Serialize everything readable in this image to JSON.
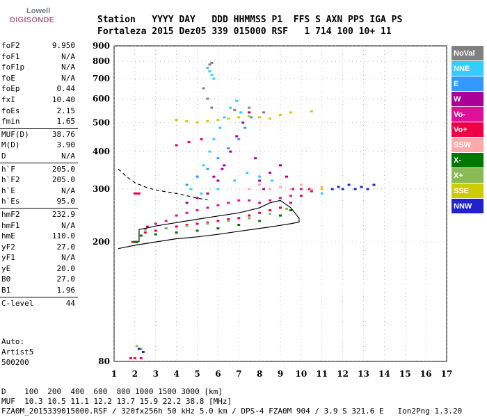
{
  "logo": {
    "line1": "Lowell",
    "line2": "DIGISONDE"
  },
  "header": {
    "line1": "Station   YYYY DAY   DDD HHMMSS P1  FFS S AXN PPS IGA PS",
    "line2": "Fortaleza 2015 Dez05 339 015000 RSF   1 714 100 10+ 11"
  },
  "params": [
    {
      "label": "foF2",
      "value": "9.950"
    },
    {
      "label": "foF1",
      "value": "N/A"
    },
    {
      "label": "foF1p",
      "value": "N/A"
    },
    {
      "label": "foE",
      "value": "N/A"
    },
    {
      "label": "foEp",
      "value": "0.44"
    },
    {
      "label": "fxI",
      "value": "10.40"
    },
    {
      "label": "foEs",
      "value": "2.15"
    },
    {
      "label": "fmin",
      "value": "1.65"
    },
    {
      "sep": true
    },
    {
      "label": "MUF(D)",
      "value": "38.76"
    },
    {
      "label": "M(D)",
      "value": "3.90"
    },
    {
      "label": "D",
      "value": "N/A"
    },
    {
      "sep": true
    },
    {
      "label": "h`F",
      "value": "205.0"
    },
    {
      "label": "h`F2",
      "value": "205.0"
    },
    {
      "label": "h`E",
      "value": "N/A"
    },
    {
      "label": "h`Es",
      "value": "95.0"
    },
    {
      "sep": true
    },
    {
      "label": "hmF2",
      "value": "232.9"
    },
    {
      "label": "hmF1",
      "value": "N/A"
    },
    {
      "label": "hmE",
      "value": "110.0"
    },
    {
      "label": "yF2",
      "value": "27.0"
    },
    {
      "label": "yF1",
      "value": "N/A"
    },
    {
      "label": "yE",
      "value": "20.0"
    },
    {
      "label": "B0",
      "value": "27.0"
    },
    {
      "label": "B1",
      "value": "1.96"
    },
    {
      "sep": true
    },
    {
      "label": "C-level",
      "value": "44"
    }
  ],
  "auto": {
    "line1": "Auto:",
    "line2": "Artist5",
    "line3": "500200"
  },
  "legend": [
    {
      "label": "NoVal",
      "color": "#808080"
    },
    {
      "label": "NNE",
      "color": "#33ccff"
    },
    {
      "label": "E",
      "color": "#3399ff"
    },
    {
      "label": "W",
      "color": "#aa0099"
    },
    {
      "label": "Vo-",
      "color": "#dd1199"
    },
    {
      "label": "Vo+",
      "color": "#ee0044"
    },
    {
      "label": "SSW",
      "color": "#ffaaaa"
    },
    {
      "label": "X-",
      "color": "#007700"
    },
    {
      "label": "X+",
      "color": "#88bb55"
    },
    {
      "label": "SSE",
      "color": "#cccc00"
    },
    {
      "label": "NNW",
      "color": "#2222cc"
    }
  ],
  "footer": {
    "line1": "D    100  200  400  600  800 1000 1500 3000 [km]",
    "line2": "MUF  10.3 10.5 11.1 12.2 13.7 15.9 22.2 38.8 [MHz]",
    "line3": "FZA0M_2015339015000.RSF / 320fx256h 50 kHz 5.0 km / DPS-4 FZA0M 904 / 3.9 S 321.6 E   Ion2Png 1.3.20"
  },
  "chart_data": {
    "type": "scatter",
    "xlim": [
      1,
      17
    ],
    "ylim": [
      80,
      900
    ],
    "y_scale": "log",
    "xticks": [
      1,
      2,
      3,
      4,
      5,
      6,
      7,
      8,
      9,
      10,
      11,
      12,
      13,
      14,
      15,
      16,
      17
    ],
    "yticks": [
      80,
      200,
      300,
      400,
      500,
      600,
      700,
      800,
      900
    ],
    "grid": true,
    "legend_position": "right",
    "series": [
      {
        "name": "NoVal",
        "color": "#808080",
        "points": [
          [
            5.5,
            760
          ],
          [
            5.6,
            780
          ],
          [
            5.7,
            790
          ],
          [
            5.3,
            650
          ],
          [
            5.5,
            600
          ],
          [
            5.7,
            560
          ],
          [
            6.8,
            550
          ],
          [
            7.5,
            560
          ],
          [
            8.2,
            540
          ]
        ]
      },
      {
        "name": "NNE",
        "color": "#33ccff",
        "points": [
          [
            5.0,
            330
          ],
          [
            5.3,
            360
          ],
          [
            5.6,
            400
          ],
          [
            5.8,
            440
          ],
          [
            6.1,
            480
          ],
          [
            6.3,
            520
          ],
          [
            6.6,
            560
          ],
          [
            6.9,
            590
          ],
          [
            7.1,
            540
          ],
          [
            5.5,
            760
          ],
          [
            5.6,
            740
          ],
          [
            5.7,
            720
          ],
          [
            5.8,
            700
          ],
          [
            4.7,
            300
          ],
          [
            5.2,
            290
          ],
          [
            6.0,
            300
          ],
          [
            6.8,
            320
          ],
          [
            7.4,
            340
          ],
          [
            8.0,
            330
          ],
          [
            8.6,
            320
          ],
          [
            10.5,
            295
          ],
          [
            11.0,
            290
          ]
        ]
      },
      {
        "name": "E",
        "color": "#3399ff",
        "points": [
          [
            4.5,
            310
          ],
          [
            5.0,
            330
          ],
          [
            5.5,
            350
          ],
          [
            6.0,
            380
          ],
          [
            6.5,
            410
          ],
          [
            7.0,
            440
          ],
          [
            7.3,
            480
          ],
          [
            7.6,
            520
          ]
        ]
      },
      {
        "name": "W",
        "color": "#aa0099",
        "points": [
          [
            4.5,
            270
          ],
          [
            5.0,
            280
          ],
          [
            5.5,
            290
          ],
          [
            6.0,
            320
          ],
          [
            6.3,
            360
          ],
          [
            6.6,
            400
          ],
          [
            6.9,
            450
          ],
          [
            7.2,
            500
          ],
          [
            7.5,
            540
          ],
          [
            8.0,
            320
          ],
          [
            8.5,
            340
          ],
          [
            9.0,
            360
          ],
          [
            9.3,
            330
          ],
          [
            5.8,
            330
          ],
          [
            6.2,
            350
          ],
          [
            7.8,
            380
          ],
          [
            8.2,
            300
          ],
          [
            9.6,
            300
          ]
        ]
      },
      {
        "name": "Vo-",
        "color": "#dd1199",
        "points": [
          [
            2.6,
            225
          ],
          [
            3.0,
            230
          ],
          [
            3.5,
            235
          ],
          [
            4.0,
            245
          ],
          [
            4.5,
            250
          ],
          [
            5.0,
            255
          ],
          [
            5.5,
            260
          ],
          [
            6.0,
            265
          ],
          [
            6.5,
            270
          ],
          [
            7.0,
            275
          ],
          [
            7.5,
            275
          ],
          [
            8.0,
            270
          ],
          [
            8.5,
            275
          ],
          [
            9.0,
            280
          ],
          [
            9.5,
            285
          ],
          [
            10.0,
            300
          ],
          [
            10.5,
            295
          ]
        ]
      },
      {
        "name": "Vo+",
        "color": "#ee0044",
        "points": [
          [
            2.5,
            215
          ],
          [
            3.0,
            218
          ],
          [
            3.5,
            222
          ],
          [
            4.0,
            225
          ],
          [
            4.5,
            228
          ],
          [
            5.0,
            230
          ],
          [
            5.5,
            232
          ],
          [
            6.0,
            235
          ],
          [
            6.5,
            238
          ],
          [
            7.0,
            240
          ],
          [
            7.5,
            245
          ],
          [
            8.0,
            250
          ],
          [
            8.5,
            255
          ],
          [
            9.0,
            260
          ],
          [
            9.5,
            270
          ],
          [
            10.0,
            285
          ],
          [
            10.4,
            300
          ],
          [
            2.0,
            290
          ],
          [
            2.1,
            290
          ],
          [
            2.2,
            290
          ],
          [
            1.9,
            200
          ],
          [
            2.0,
            200
          ],
          [
            2.1,
            200
          ],
          [
            1.8,
            82
          ],
          [
            2.0,
            82
          ],
          [
            2.3,
            82
          ],
          [
            4.0,
            420
          ],
          [
            4.6,
            430
          ],
          [
            5.2,
            440
          ]
        ]
      },
      {
        "name": "SSW",
        "color": "#ffaaaa",
        "points": [
          [
            7.5,
            300
          ],
          [
            8.0,
            310
          ],
          [
            8.5,
            300
          ],
          [
            9.0,
            305
          ],
          [
            9.5,
            300
          ],
          [
            10.0,
            310
          ],
          [
            10.5,
            300
          ],
          [
            11.0,
            305
          ]
        ]
      },
      {
        "name": "X-",
        "color": "#007700",
        "points": [
          [
            2.3,
            210
          ],
          [
            3.0,
            212
          ],
          [
            4.0,
            215
          ],
          [
            5.0,
            218
          ],
          [
            6.0,
            222
          ],
          [
            7.0,
            228
          ],
          [
            8.0,
            235
          ],
          [
            9.0,
            245
          ],
          [
            9.5,
            255
          ],
          [
            2.0,
            200
          ],
          [
            2.1,
            200
          ]
        ]
      },
      {
        "name": "X+",
        "color": "#88bb55",
        "points": [
          [
            2.5,
            220
          ],
          [
            3.5,
            222
          ],
          [
            4.5,
            226
          ],
          [
            5.5,
            230
          ],
          [
            6.5,
            235
          ],
          [
            7.5,
            240
          ],
          [
            8.5,
            248
          ],
          [
            9.3,
            258
          ],
          [
            2.1,
            90
          ],
          [
            2.3,
            88
          ]
        ]
      },
      {
        "name": "SSE",
        "color": "#cccc00",
        "points": [
          [
            4.0,
            510
          ],
          [
            4.5,
            505
          ],
          [
            5.0,
            500
          ],
          [
            5.5,
            505
          ],
          [
            6.0,
            510
          ],
          [
            6.5,
            515
          ],
          [
            7.0,
            520
          ],
          [
            7.5,
            525
          ],
          [
            8.0,
            520
          ],
          [
            8.5,
            515
          ],
          [
            9.0,
            530
          ],
          [
            9.5,
            540
          ],
          [
            10.5,
            545
          ],
          [
            11.0,
            300
          ],
          [
            11.5,
            300
          ]
        ]
      },
      {
        "name": "NNW",
        "color": "#2222cc",
        "points": [
          [
            11.5,
            300
          ],
          [
            11.8,
            305
          ],
          [
            12.0,
            300
          ],
          [
            12.3,
            310
          ],
          [
            12.6,
            300
          ],
          [
            12.9,
            305
          ],
          [
            13.2,
            300
          ],
          [
            13.5,
            310
          ],
          [
            2.2,
            88
          ],
          [
            2.4,
            86
          ]
        ]
      }
    ],
    "lines": [
      {
        "name": "profile",
        "style": "solid",
        "points": [
          [
            1.2,
            190
          ],
          [
            2.0,
            195
          ],
          [
            3.0,
            200
          ],
          [
            4.0,
            205
          ],
          [
            5.0,
            208
          ],
          [
            6.0,
            212
          ],
          [
            7.0,
            217
          ],
          [
            8.0,
            222
          ],
          [
            8.8,
            226
          ],
          [
            9.5,
            230
          ],
          [
            9.9,
            233
          ],
          [
            9.9,
            240
          ],
          [
            9.5,
            260
          ],
          [
            9.0,
            275
          ],
          [
            8.5,
            270
          ],
          [
            8.0,
            260
          ],
          [
            7.0,
            250
          ],
          [
            6.0,
            244
          ],
          [
            5.0,
            238
          ],
          [
            4.0,
            232
          ],
          [
            3.0,
            226
          ],
          [
            2.5,
            222
          ],
          [
            2.2,
            220
          ],
          [
            2.2,
            200
          ]
        ]
      },
      {
        "name": "topside",
        "style": "dashed",
        "points": [
          [
            1.2,
            350
          ],
          [
            1.6,
            330
          ],
          [
            2.0,
            315
          ],
          [
            2.5,
            305
          ],
          [
            3.0,
            298
          ],
          [
            3.5,
            294
          ],
          [
            4.0,
            290
          ],
          [
            4.5,
            285
          ],
          [
            5.0,
            280
          ],
          [
            5.5,
            276
          ]
        ]
      }
    ]
  }
}
